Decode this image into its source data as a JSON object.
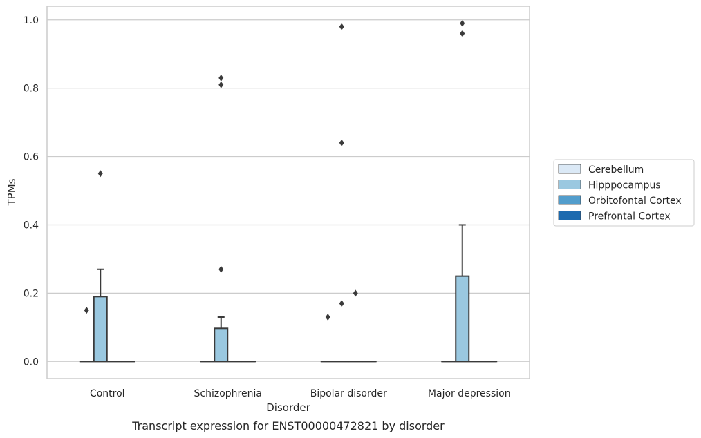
{
  "chart_data": {
    "type": "box",
    "caption": "Transcript expression for ENST00000472821 by disorder",
    "xlabel": "Disorder",
    "ylabel": "TPMs",
    "ylim": [
      -0.05,
      1.04
    ],
    "yticks": [
      0.0,
      0.2,
      0.4,
      0.6,
      0.8,
      1.0
    ],
    "ytick_labels": [
      "0.0",
      "0.2",
      "0.4",
      "0.6",
      "0.8",
      "1.0"
    ],
    "grid": true,
    "legend_position": "right",
    "categories": [
      "Control",
      "Schizophrenia",
      "Bipolar disorder",
      "Major depression"
    ],
    "series": [
      {
        "name": "Cerebellum",
        "color": "#dbe9f6",
        "boxes": [
          {
            "q1": 0,
            "median": 0,
            "q3": 0,
            "whisker_low": 0,
            "whisker_high": 0,
            "outliers": [
              0.15
            ]
          },
          {
            "q1": 0,
            "median": 0,
            "q3": 0,
            "whisker_low": 0,
            "whisker_high": 0,
            "outliers": []
          },
          {
            "q1": 0,
            "median": 0,
            "q3": 0,
            "whisker_low": 0,
            "whisker_high": 0,
            "outliers": [
              0.13
            ]
          },
          {
            "q1": 0,
            "median": 0,
            "q3": 0,
            "whisker_low": 0,
            "whisker_high": 0,
            "outliers": []
          }
        ]
      },
      {
        "name": "Hipppocampus",
        "color": "#9ac8e0",
        "boxes": [
          {
            "q1": 0,
            "median": 0,
            "q3": 0.19,
            "whisker_low": 0,
            "whisker_high": 0.27,
            "outliers": [
              0.55
            ]
          },
          {
            "q1": 0,
            "median": 0,
            "q3": 0.097,
            "whisker_low": 0,
            "whisker_high": 0.13,
            "outliers": [
              0.27,
              0.81,
              0.83
            ]
          },
          {
            "q1": 0,
            "median": 0,
            "q3": 0,
            "whisker_low": 0,
            "whisker_high": 0,
            "outliers": [
              0.17,
              0.64,
              0.98
            ]
          },
          {
            "q1": 0,
            "median": 0,
            "q3": 0.25,
            "whisker_low": 0,
            "whisker_high": 0.4,
            "outliers": [
              0.96,
              0.99
            ]
          }
        ]
      },
      {
        "name": "Orbitofontal Cortex",
        "color": "#529dcc",
        "boxes": [
          {
            "q1": 0,
            "median": 0,
            "q3": 0,
            "whisker_low": 0,
            "whisker_high": 0,
            "outliers": []
          },
          {
            "q1": 0,
            "median": 0,
            "q3": 0,
            "whisker_low": 0,
            "whisker_high": 0,
            "outliers": []
          },
          {
            "q1": 0,
            "median": 0,
            "q3": 0,
            "whisker_low": 0,
            "whisker_high": 0,
            "outliers": [
              0.2
            ]
          },
          {
            "q1": 0,
            "median": 0,
            "q3": 0,
            "whisker_low": 0,
            "whisker_high": 0,
            "outliers": []
          }
        ]
      },
      {
        "name": "Prefrontal Cortex",
        "color": "#1c6aaf",
        "boxes": [
          {
            "q1": 0,
            "median": 0,
            "q3": 0,
            "whisker_low": 0,
            "whisker_high": 0,
            "outliers": []
          },
          {
            "q1": 0,
            "median": 0,
            "q3": 0,
            "whisker_low": 0,
            "whisker_high": 0,
            "outliers": []
          },
          {
            "q1": 0,
            "median": 0,
            "q3": 0,
            "whisker_low": 0,
            "whisker_high": 0,
            "outliers": []
          },
          {
            "q1": 0,
            "median": 0,
            "q3": 0,
            "whisker_low": 0,
            "whisker_high": 0,
            "outliers": []
          }
        ]
      }
    ],
    "colors": {
      "grid": "#cccccc",
      "frame": "#cccccc",
      "box_edge": "#3a3a3a",
      "outlier": "#3a3a3a"
    }
  }
}
